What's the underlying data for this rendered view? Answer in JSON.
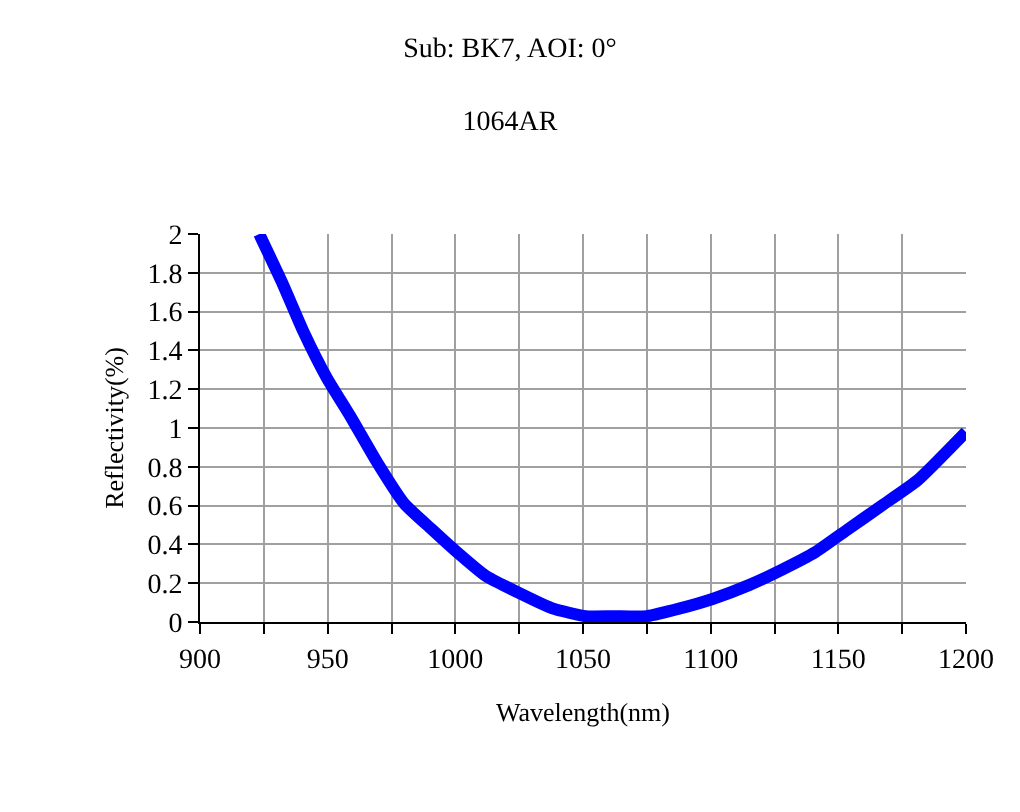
{
  "chart_data": {
    "type": "line",
    "title": "Sub: BK7, AOI: 0°",
    "subtitle": "1064AR",
    "xlabel": "Wavelength(nm)",
    "ylabel": "Reflectivity(%)",
    "x": [
      923.2,
      932.5,
      940.4,
      949.6,
      958.9,
      969.5,
      980,
      990.6,
      999.8,
      1011.7,
      1024.9,
      1038,
      1051,
      1062,
      1075,
      1088,
      1101,
      1115,
      1128,
      1141,
      1154,
      1167,
      1181,
      1200
    ],
    "series": [
      {
        "color": "#0000ff",
        "values": [
          2.0,
          1.74,
          1.5,
          1.26,
          1.06,
          0.82,
          0.61,
          0.48,
          0.37,
          0.24,
          0.15,
          0.07,
          0.03,
          0.03,
          0.03,
          0.07,
          0.12,
          0.19,
          0.27,
          0.36,
          0.48,
          0.6,
          0.73,
          0.98
        ]
      }
    ],
    "xlim": [
      900,
      1200
    ],
    "xticks": [
      900,
      {
        "value": 925,
        "label": null
      },
      950,
      {
        "value": 975,
        "label": null
      },
      1000,
      {
        "value": 1025,
        "label": null
      },
      1050,
      {
        "value": 1075,
        "label": null
      },
      1100,
      {
        "value": 1125,
        "label": null
      },
      1150,
      {
        "value": 1175,
        "label": null
      },
      1200
    ],
    "ylim": [
      0,
      2
    ],
    "yticks": [
      0,
      0.2,
      0.4,
      0.6,
      0.8,
      1,
      1.2,
      1.4,
      1.6,
      1.8,
      2
    ],
    "grid": true,
    "line_style": "solid"
  }
}
